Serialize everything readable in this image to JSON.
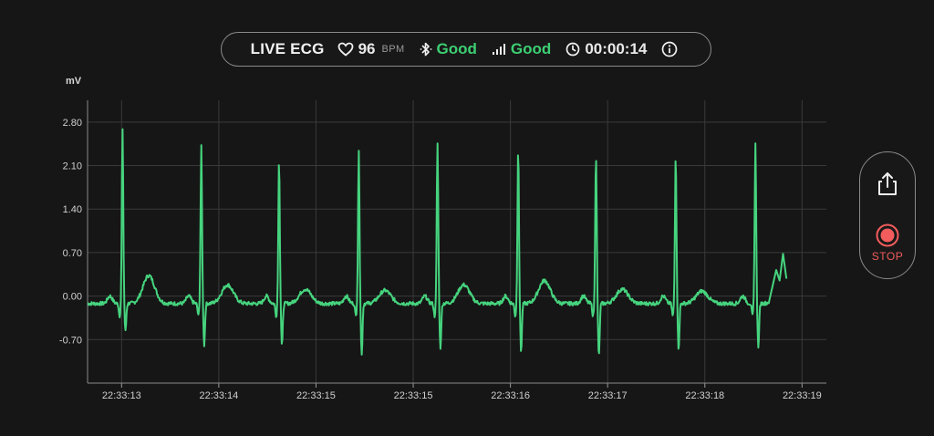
{
  "status_bar": {
    "title": "LIVE ECG",
    "heart_icon": "heart-icon",
    "bpm_value": "96",
    "bpm_unit": "BPM",
    "bluetooth_icon": "bluetooth-icon",
    "bluetooth_status": "Good",
    "signal_icon": "signal-bars-icon",
    "signal_status": "Good",
    "clock_icon": "clock-icon",
    "elapsed": "00:00:14",
    "info_icon": "info-icon",
    "good_color": "#3ccf72"
  },
  "controls": {
    "share_icon": "share-icon",
    "record_icon": "record-icon",
    "stop_label": "STOP",
    "stop_color": "#f25c5c"
  },
  "chart_data": {
    "type": "line",
    "ylabel": "mV",
    "xlabel": "",
    "y_ticks": [
      2.8,
      2.1,
      1.4,
      0.7,
      0.0,
      -0.7
    ],
    "y_tick_labels": [
      "2.80",
      "2.10",
      "1.40",
      "0.70",
      "0.00",
      "-0.70"
    ],
    "ylim": [
      -1.4,
      3.15
    ],
    "x_tick_labels": [
      "22:33:13",
      "22:33:14",
      "22:33:15",
      "22:33:15",
      "22:33:16",
      "22:33:17",
      "22:33:18",
      "22:33:19"
    ],
    "x_tick_positions": [
      0.25,
      1.25,
      2.25,
      3.25,
      4.25,
      5.25,
      6.25,
      7.25
    ],
    "xlim": [
      -0.1,
      7.5
    ],
    "grid": true,
    "line_color": "#46d47e",
    "beats": [
      {
        "t": 0.26,
        "r": 2.68,
        "s": -0.6,
        "t_wave": 0.3
      },
      {
        "t": 1.07,
        "r": 2.42,
        "s": -0.82,
        "t_wave": 0.15
      },
      {
        "t": 1.87,
        "r": 2.2,
        "s": -0.83,
        "t_wave": 0.08
      },
      {
        "t": 2.69,
        "r": 2.33,
        "s": -0.98,
        "t_wave": 0.06
      },
      {
        "t": 3.5,
        "r": 2.48,
        "s": -0.86,
        "t_wave": 0.15
      },
      {
        "t": 4.33,
        "r": 2.4,
        "s": -0.92,
        "t_wave": 0.22
      },
      {
        "t": 5.13,
        "r": 2.3,
        "s": -1.0,
        "t_wave": 0.08
      },
      {
        "t": 5.95,
        "r": 2.3,
        "s": -0.88,
        "t_wave": 0.05
      },
      {
        "t": 6.77,
        "r": 2.48,
        "s": -0.87,
        "t_wave": 0.12
      }
    ],
    "trailing_values": [
      0.18,
      0.42,
      0.25,
      0.68,
      0.28
    ]
  }
}
